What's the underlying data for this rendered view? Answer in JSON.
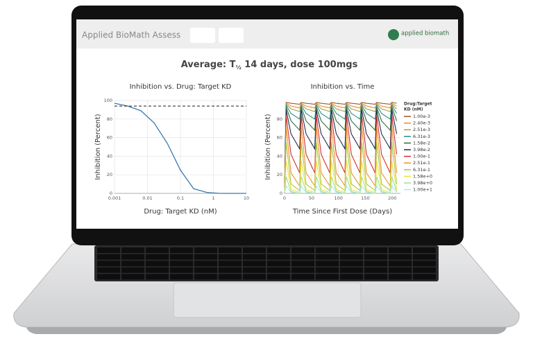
{
  "header": {
    "app_name": "Applied BioMath Assess",
    "logo_text": "applied biomath"
  },
  "page_title": {
    "prefix": "Average: T",
    "subscript": "½",
    "suffix": " 14 days, dose 100mgs"
  },
  "chart_data": [
    {
      "type": "line",
      "title": "Inhibition vs. Drug: Target KD",
      "x_label": "Drug: Target KD (nM)",
      "y_label": "Inhibition (Percent)",
      "x": [
        0.001,
        0.00251,
        0.00631,
        0.0158,
        0.0398,
        0.1,
        0.251,
        0.631,
        1.58,
        3.98,
        10
      ],
      "values": [
        97,
        94,
        89,
        76,
        54,
        25,
        5,
        1,
        0,
        0,
        0
      ],
      "color": "#3a78b0",
      "x_log": true,
      "reference_line": 94,
      "reference_color": "#333333",
      "xlim": [
        0.001,
        10
      ],
      "xticks": [
        0.001,
        0.01,
        0.1,
        1,
        10
      ],
      "ylim": [
        0,
        100
      ],
      "yticks": [
        0,
        20,
        40,
        60,
        80,
        100
      ],
      "grid": true
    },
    {
      "type": "multiline",
      "title": "Inhibition vs. Time",
      "x_label": "Time Since First Dose (Days)",
      "y_label": "Inhibition (Percent)",
      "legend_title": [
        "Drug:Target",
        "KD (nM)"
      ],
      "legend_position": "right",
      "x": [
        0,
        3,
        12,
        28,
        31,
        40,
        56,
        59,
        68,
        84,
        87,
        96,
        112,
        115,
        124,
        140,
        143,
        152,
        168,
        171,
        180,
        196,
        199,
        208
      ],
      "series": [
        {
          "name": "1.00e-3",
          "color": "#a0522d",
          "values": [
            0,
            98,
            97,
            96,
            98,
            97,
            96,
            98,
            97,
            96,
            98,
            97,
            96,
            98,
            97,
            96,
            98,
            97,
            96,
            98,
            97,
            96,
            98,
            97
          ]
        },
        {
          "name": "2.40e-3",
          "color": "#e08a2c",
          "values": [
            0,
            97,
            94,
            92,
            97,
            94,
            92,
            97,
            94,
            92,
            97,
            94,
            92,
            97,
            94,
            92,
            97,
            94,
            92,
            97,
            94,
            92,
            97,
            94
          ]
        },
        {
          "name": "2.51e-3",
          "color": "#a8a04a",
          "values": [
            0,
            96,
            91,
            88,
            96,
            91,
            88,
            96,
            91,
            88,
            96,
            91,
            88,
            96,
            91,
            88,
            96,
            91,
            88,
            96,
            91,
            88,
            96,
            91
          ]
        },
        {
          "name": "6.31e-3",
          "color": "#2a8c8c",
          "values": [
            0,
            95,
            86,
            80,
            95,
            86,
            80,
            95,
            86,
            80,
            95,
            86,
            80,
            95,
            86,
            80,
            95,
            86,
            80,
            95,
            86,
            80,
            95,
            86
          ]
        },
        {
          "name": "1.58e-2",
          "color": "#2e6b3a",
          "values": [
            0,
            93,
            78,
            68,
            93,
            78,
            68,
            93,
            78,
            68,
            93,
            78,
            68,
            93,
            78,
            68,
            93,
            78,
            68,
            93,
            78,
            68,
            93,
            78
          ]
        },
        {
          "name": "3.98e-2",
          "color": "#1c2a4a",
          "values": [
            0,
            90,
            64,
            48,
            90,
            64,
            48,
            90,
            64,
            48,
            90,
            64,
            48,
            90,
            64,
            48,
            90,
            64,
            48,
            90,
            64,
            48,
            90,
            64
          ]
        },
        {
          "name": "1.00e-1",
          "color": "#d0302a",
          "values": [
            0,
            84,
            42,
            22,
            84,
            42,
            22,
            84,
            42,
            22,
            84,
            42,
            22,
            84,
            42,
            22,
            84,
            42,
            22,
            84,
            42,
            22,
            84,
            42
          ]
        },
        {
          "name": "2.51e-1",
          "color": "#f0902a",
          "values": [
            0,
            72,
            22,
            8,
            72,
            22,
            8,
            72,
            22,
            8,
            72,
            22,
            8,
            72,
            22,
            8,
            72,
            22,
            8,
            72,
            22,
            8,
            72,
            22
          ]
        },
        {
          "name": "6.31e-1",
          "color": "#a8c83a",
          "values": [
            0,
            55,
            10,
            3,
            55,
            10,
            3,
            55,
            10,
            3,
            55,
            10,
            3,
            55,
            10,
            3,
            55,
            10,
            3,
            55,
            10,
            3,
            55,
            10
          ]
        },
        {
          "name": "1.58e+0",
          "color": "#f0e040",
          "values": [
            0,
            35,
            4,
            1,
            35,
            4,
            1,
            35,
            4,
            1,
            35,
            4,
            1,
            35,
            4,
            1,
            35,
            4,
            1,
            35,
            4,
            1,
            35,
            4
          ]
        },
        {
          "name": "3.98e+0",
          "color": "#9ee08a",
          "values": [
            0,
            18,
            2,
            0,
            18,
            2,
            0,
            18,
            2,
            0,
            18,
            2,
            0,
            18,
            2,
            0,
            18,
            2,
            0,
            18,
            2,
            0,
            18,
            2
          ]
        },
        {
          "name": "1.00e+1",
          "color": "#a8e8e8",
          "values": [
            0,
            8,
            1,
            0,
            8,
            1,
            0,
            8,
            1,
            0,
            8,
            1,
            0,
            8,
            1,
            0,
            8,
            1,
            0,
            8,
            1,
            0,
            8,
            1
          ]
        }
      ],
      "xlim": [
        0,
        215
      ],
      "xticks": [
        0,
        50,
        100,
        150,
        200
      ],
      "ylim": [
        0,
        100
      ],
      "yticks": [
        0,
        20,
        40,
        60,
        80
      ],
      "grid": true
    }
  ]
}
